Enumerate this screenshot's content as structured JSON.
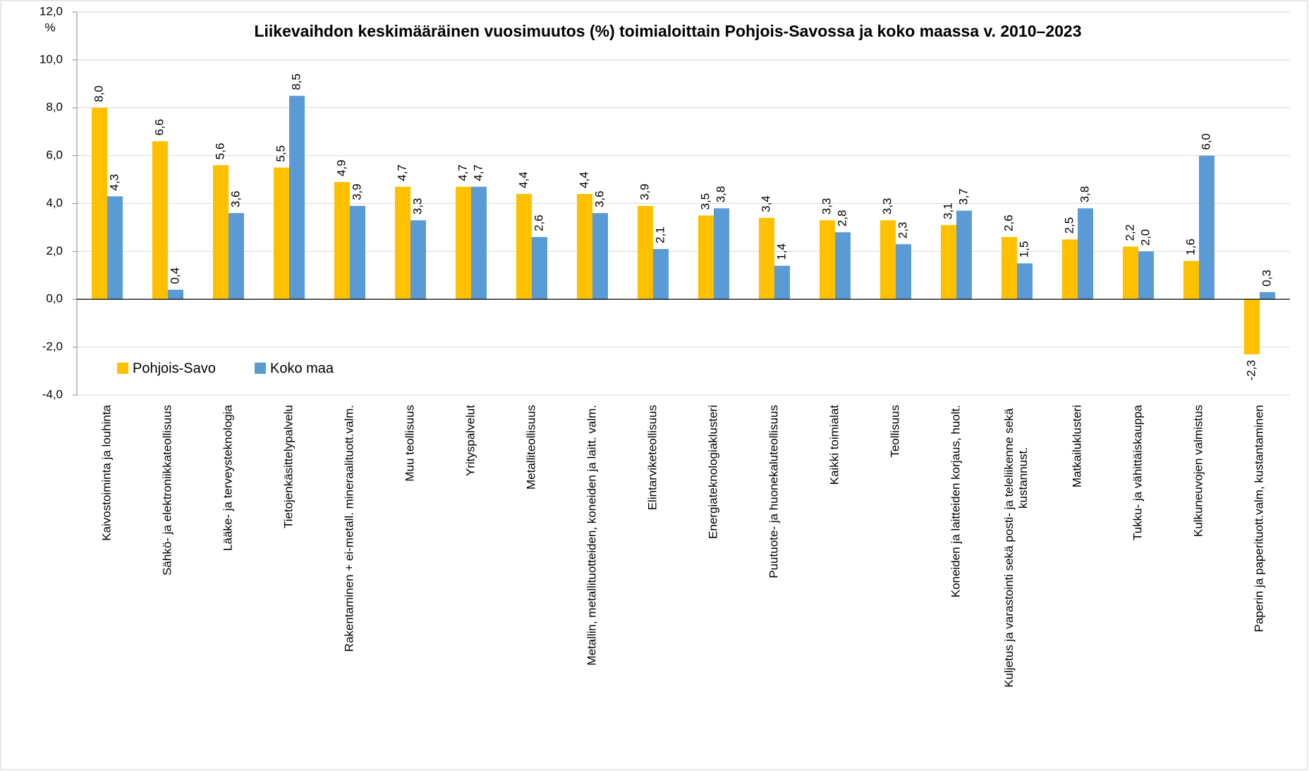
{
  "chart_data": {
    "type": "bar",
    "title": "Liikevaihdon keskimääräinen vuosimuutos (%) toimialoittain Pohjois-Savossa ja koko maassa v. 2010–2023",
    "y_label": "%",
    "categories": [
      "Kaivostoiminta ja louhinta",
      "Sähkö- ja elektroniikkateollisuus",
      "Lääke- ja terveysteknologia",
      "Tietojenkäsittelypalvelu",
      "Rakentaminen + ei-metall. mineraalituott.valm.",
      "Muu teollisuus",
      "Yrityspalvelut",
      "Metalliteollisuus",
      "Metallin, metallituotteiden, koneiden ja laitt. valm.",
      "Elintarviketeollisuus",
      "Energiateknologiaklusteri",
      "Puutuote- ja huonekaluteollisuus",
      "Kaikki toimialat",
      "Teollisuus",
      "Koneiden ja laitteiden korjaus, huolt.",
      "Kuljetus ja varastointi sekä posti- ja teleliikenne sekä kustannust.",
      "Matkailuklusteri",
      "Tukku- ja vähittäiskauppa",
      "Kulkuneuvojen valmistus",
      "Paperin ja paperituott.valm, kustantaminen"
    ],
    "series": [
      {
        "name": "Pohjois-Savo",
        "color": "#FFC000",
        "values": [
          8.0,
          6.6,
          5.6,
          5.5,
          4.9,
          4.7,
          4.7,
          4.4,
          4.4,
          3.9,
          3.5,
          3.4,
          3.3,
          3.3,
          3.1,
          2.6,
          2.5,
          2.2,
          1.6,
          -2.3
        ],
        "value_labels": [
          "8,0",
          "6,6",
          "5,6",
          "5,5",
          "4,9",
          "4,7",
          "4,7",
          "4,4",
          "4,4",
          "3,9",
          "3,5",
          "3,4",
          "3,3",
          "3,3",
          "3,1",
          "2,6",
          "2,5",
          "2,2",
          "1,6",
          "-2,3"
        ]
      },
      {
        "name": "Koko maa",
        "color": "#5B9BD5",
        "values": [
          4.3,
          0.4,
          3.6,
          8.5,
          3.9,
          3.3,
          4.7,
          2.6,
          3.6,
          2.1,
          3.8,
          1.4,
          2.8,
          2.3,
          3.7,
          1.5,
          3.8,
          2.0,
          6.0,
          0.3
        ],
        "value_labels": [
          "4,3",
          "0,4",
          "3,6",
          "8,5",
          "3,9",
          "3,3",
          "4,7",
          "2,6",
          "3,6",
          "2,1",
          "3,8",
          "1,4",
          "2,8",
          "2,3",
          "3,7",
          "1,5",
          "3,8",
          "2,0",
          "6,0",
          "0,3"
        ]
      }
    ],
    "ylim": [
      -4,
      12
    ],
    "yticks": [
      {
        "value": -4,
        "label": "-4,0"
      },
      {
        "value": -2,
        "label": "-2,0"
      },
      {
        "value": 0,
        "label": "0,0"
      },
      {
        "value": 2,
        "label": "2,0"
      },
      {
        "value": 4,
        "label": "4,0"
      },
      {
        "value": 6,
        "label": "6,0"
      },
      {
        "value": 8,
        "label": "8,0"
      },
      {
        "value": 10,
        "label": "10,0"
      },
      {
        "value": 12,
        "label": "12,0"
      }
    ],
    "grid": true,
    "legend": "lower left"
  }
}
